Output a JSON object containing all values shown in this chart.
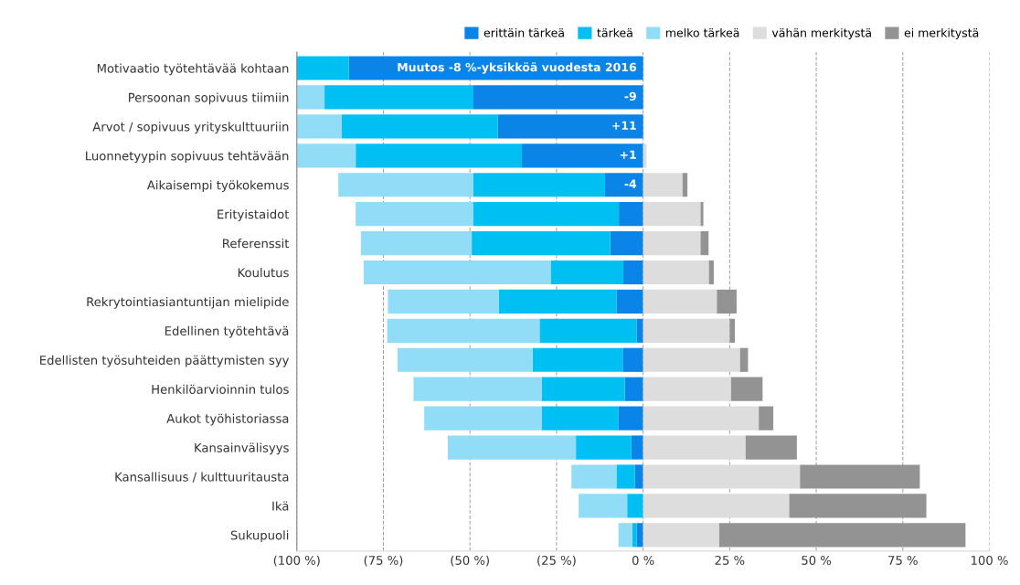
{
  "chart_data": {
    "type": "bar",
    "orientation": "horizontal",
    "stacked": true,
    "categories": [
      "Motivaatio työtehtävää kohtaan",
      "Persoonan sopivuus tiimiin",
      "Arvot / sopivuus yrityskulttuuriin",
      "Luonnetyypin sopivuus tehtävään",
      "Aikaisempi työkokemus",
      "Erityistaidot",
      "Referenssit",
      "Koulutus",
      "Rekrytointiasiantuntijan mielipide",
      "Edellinen työtehtävä",
      "Edellisten työsuhteiden päättymisten syy",
      "Henkilöarvioinnin tulos",
      "Aukot työhistoriassa",
      "Kansainvälisyys",
      "Kansallisuus / kulttuuritausta",
      "Ikä",
      "Sukupuoli"
    ],
    "series": [
      {
        "name": "erittäin tärkeä",
        "color": "#0a84e6",
        "values": [
          -85,
          -49,
          -42,
          -35,
          -11,
          -7,
          -9.5,
          -5.7,
          -7.7,
          -1.9,
          -5.9,
          -5.3,
          -7.2,
          -3.4,
          -2.4,
          0,
          -1.9
        ]
      },
      {
        "name": "tärkeä",
        "color": "#00bff3",
        "values": [
          -15,
          -43,
          -45,
          -48,
          -38,
          -42,
          -40,
          -21,
          -34,
          -28,
          -26,
          -24,
          -22,
          -16,
          -5.3,
          -4.6,
          -1.2
        ]
      },
      {
        "name": "melko tärkeä",
        "color": "#91dcf7",
        "values": [
          0,
          -8,
          -13,
          -17,
          -39,
          -34,
          -32,
          -54,
          -32,
          -44,
          -39,
          -37,
          -34,
          -37,
          -13,
          -14,
          -4
        ]
      },
      {
        "name": "vähän merkitystä",
        "color": "#dddddd",
        "values": [
          0,
          0,
          0,
          1,
          11.4,
          16.6,
          16.6,
          19,
          21.3,
          25,
          28,
          25.4,
          33.4,
          29.6,
          45.3,
          42.2,
          22
        ]
      },
      {
        "name": "ei merkitystä",
        "color": "#939393",
        "values": [
          0,
          0,
          0,
          0,
          1.4,
          0.8,
          2.3,
          1.4,
          5.7,
          1.5,
          2.3,
          9.1,
          4.2,
          14.8,
          34.6,
          39.6,
          71.1
        ]
      }
    ],
    "xlim": [
      -100,
      100
    ],
    "xticks": [
      {
        "value": -100,
        "label": "(100 %)"
      },
      {
        "value": -75,
        "label": "(75 %)"
      },
      {
        "value": -50,
        "label": "(50 %)"
      },
      {
        "value": -25,
        "label": "(25 %)"
      },
      {
        "value": 0,
        "label": "0 %"
      },
      {
        "value": 25,
        "label": "25 %"
      },
      {
        "value": 50,
        "label": "50 %"
      },
      {
        "value": 75,
        "label": "75 %"
      },
      {
        "value": 100,
        "label": "100 %"
      }
    ],
    "grid": "x",
    "legend": "top right",
    "annotations": [
      {
        "text": "Muutos -8 %-yksikköä vuodesta 2016",
        "y": "Motivaatio työtehtävää kohtaan"
      },
      {
        "text": "-9",
        "y": "Persoonan sopivuus tiimiin"
      },
      {
        "text": "+11",
        "y": "Arvot / sopivuus yrityskulttuuriin"
      },
      {
        "text": "+1",
        "y": "Luonnetyypin sopivuus tehtävään"
      },
      {
        "text": "-4",
        "y": "Aikaisempi työkokemus"
      }
    ]
  }
}
